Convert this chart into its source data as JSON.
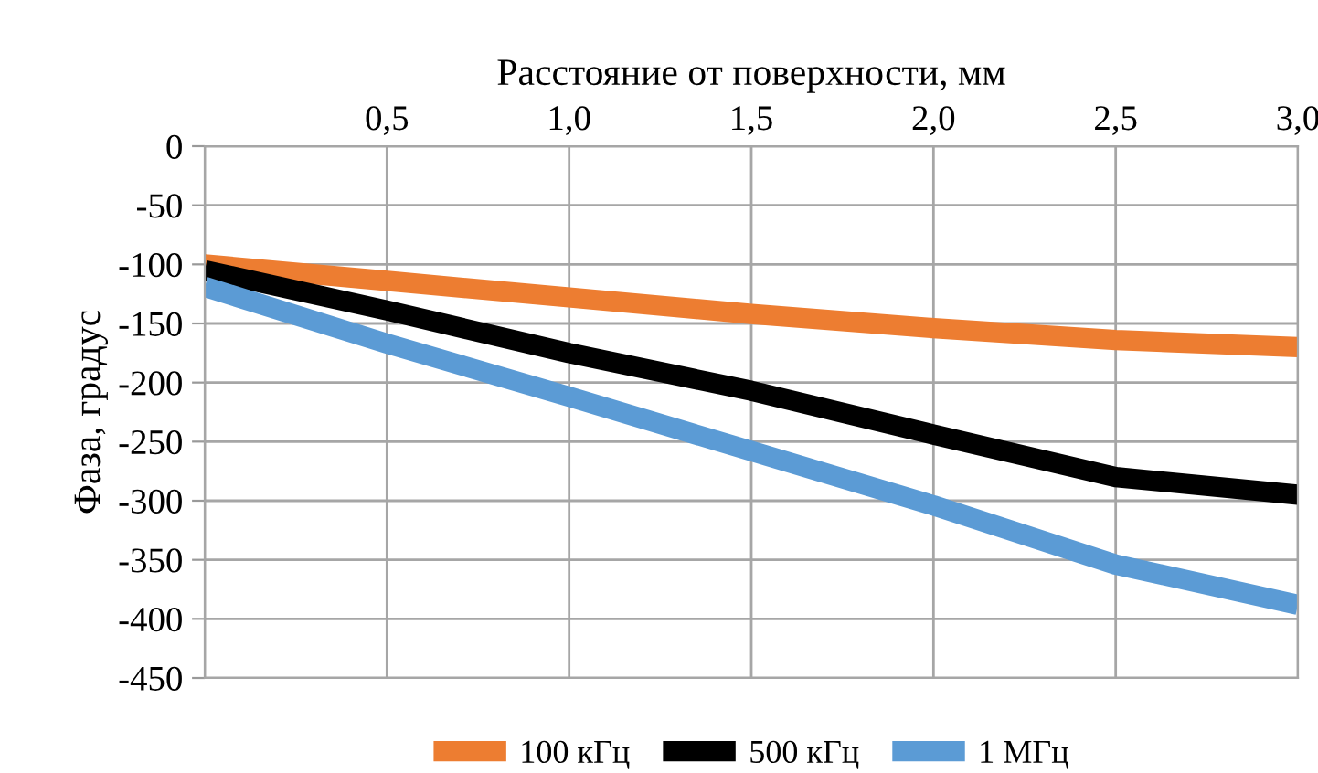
{
  "chart_data": {
    "type": "line",
    "xlabel": "Расстояние от поверхности, мм",
    "ylabel": "Фаза, градус",
    "x": [
      0,
      0.5,
      1.0,
      1.5,
      2.0,
      2.5,
      3.0
    ],
    "series": [
      {
        "name": "100 кГц",
        "color": "#ed7d31",
        "values": [
          -100,
          -114,
          -128,
          -142,
          -154,
          -164,
          -170
        ]
      },
      {
        "name": "500 кГц",
        "color": "#000000",
        "values": [
          -105,
          -139,
          -175,
          -207,
          -244,
          -280,
          -295
        ]
      },
      {
        "name": "1 МГц",
        "color": "#5b9bd5",
        "values": [
          -119,
          -167,
          -212,
          -258,
          -304,
          -354,
          -388
        ]
      }
    ],
    "xlim": [
      0,
      3.0
    ],
    "xticks": [
      {
        "value": 0,
        "label": null
      },
      {
        "value": 0.5,
        "label": "0,5"
      },
      {
        "value": 1.0,
        "label": "1,0"
      },
      {
        "value": 1.5,
        "label": "1,5"
      },
      {
        "value": 2.0,
        "label": "2,0"
      },
      {
        "value": 2.5,
        "label": "2,5"
      },
      {
        "value": 3.0,
        "label": "3,0"
      }
    ],
    "ylim": [
      -450,
      0
    ],
    "yticks": [
      -450,
      -400,
      -350,
      -300,
      -250,
      -200,
      -150,
      -100,
      -50,
      0
    ],
    "grid": true,
    "legend": "bottom",
    "marker": "none",
    "line_style": "solid"
  }
}
